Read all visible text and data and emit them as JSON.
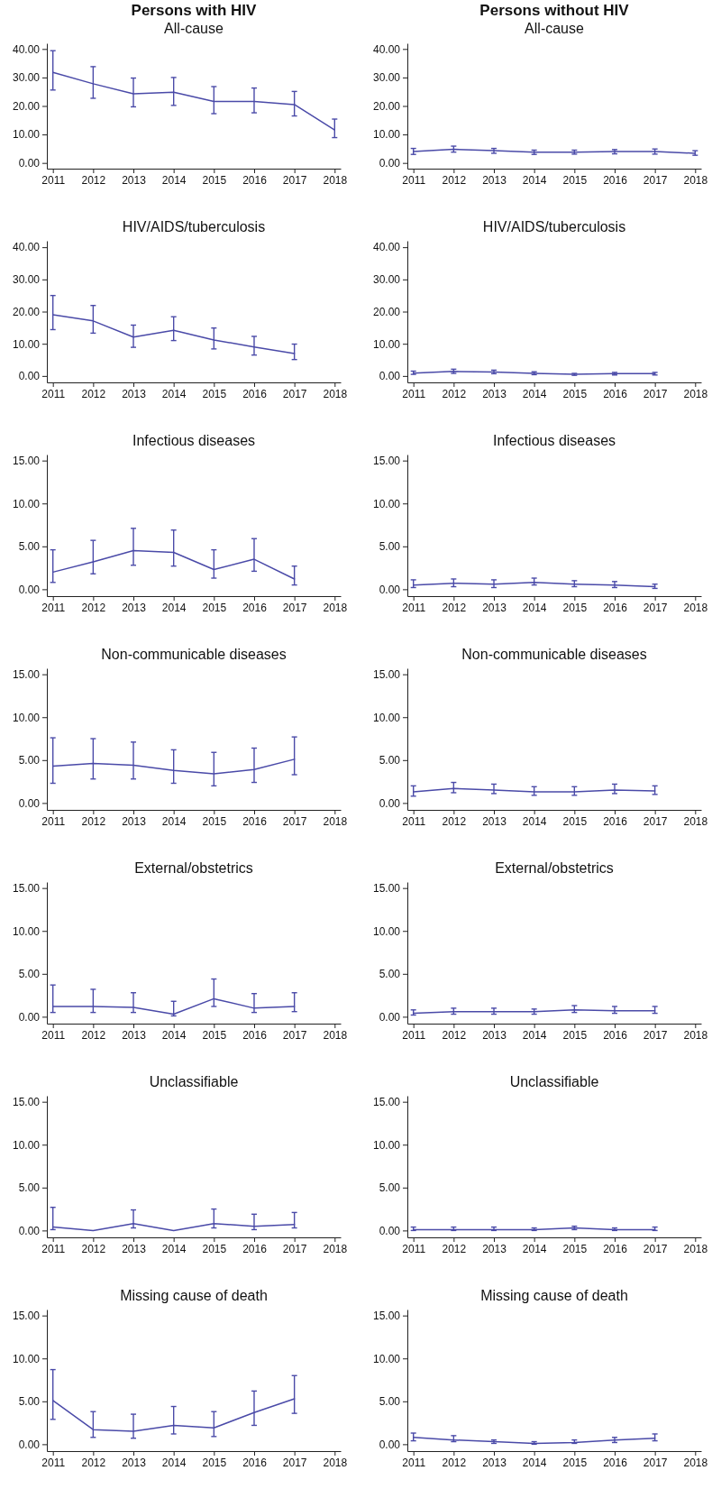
{
  "chart_data": [
    {
      "type": "line",
      "title": "Persons with HIV",
      "subtitle": "All-cause",
      "x": [
        2011,
        2012,
        2013,
        2014,
        2015,
        2016,
        2017,
        2018
      ],
      "values": [
        31.8,
        27.8,
        24.3,
        24.8,
        21.6,
        21.6,
        20.5,
        11.6
      ],
      "errors": [
        [
          25.6,
          39.4
        ],
        [
          22.7,
          33.8
        ],
        [
          19.7,
          29.8
        ],
        [
          20.2,
          30.0
        ],
        [
          17.3,
          26.8
        ],
        [
          17.6,
          26.3
        ],
        [
          16.5,
          25.1
        ],
        [
          8.9,
          15.4
        ]
      ],
      "color": "#4a4aa8",
      "xlim": [
        2010.85,
        2018.15
      ],
      "xticks": [
        2011,
        2012,
        2013,
        2014,
        2015,
        2016,
        2017,
        2018
      ],
      "ylim": [
        -2,
        42
      ],
      "yticks": [
        {
          "value": 0,
          "label": "0.00"
        },
        {
          "value": 10,
          "label": "10.00"
        },
        {
          "value": 20,
          "label": "20.00"
        },
        {
          "value": 30,
          "label": "30.00"
        },
        {
          "value": 40,
          "label": "40.00"
        }
      ]
    },
    {
      "type": "line",
      "title": "Persons without HIV",
      "subtitle": "All-cause",
      "x": [
        2011,
        2012,
        2013,
        2014,
        2015,
        2016,
        2017,
        2018
      ],
      "values": [
        4.0,
        4.8,
        4.3,
        3.8,
        3.8,
        4.0,
        4.0,
        3.4
      ],
      "errors": [
        [
          3.0,
          5.1
        ],
        [
          3.8,
          5.9
        ],
        [
          3.4,
          5.1
        ],
        [
          3.0,
          4.5
        ],
        [
          3.1,
          4.5
        ],
        [
          3.2,
          4.7
        ],
        [
          3.1,
          4.9
        ],
        [
          2.7,
          4.3
        ]
      ],
      "color": "#4a4aa8",
      "xlim": [
        2010.85,
        2018.15
      ],
      "xticks": [
        2011,
        2012,
        2013,
        2014,
        2015,
        2016,
        2017,
        2018
      ],
      "ylim": [
        -2,
        42
      ],
      "yticks": [
        {
          "value": 0,
          "label": "0.00"
        },
        {
          "value": 10,
          "label": "10.00"
        },
        {
          "value": 20,
          "label": "20.00"
        },
        {
          "value": 30,
          "label": "30.00"
        },
        {
          "value": 40,
          "label": "40.00"
        }
      ]
    },
    {
      "type": "line",
      "title": "HIV/AIDS/tuberculosis",
      "x": [
        2011,
        2012,
        2013,
        2014,
        2015,
        2016,
        2017
      ],
      "values": [
        19.0,
        17.1,
        12.1,
        14.2,
        11.2,
        9.0,
        7.0
      ],
      "errors": [
        [
          14.4,
          25.0
        ],
        [
          13.3,
          21.9
        ],
        [
          8.9,
          15.8
        ],
        [
          11.0,
          18.4
        ],
        [
          8.4,
          14.9
        ],
        [
          6.5,
          12.3
        ],
        [
          5.1,
          9.9
        ]
      ],
      "color": "#4a4aa8",
      "xlim": [
        2010.85,
        2018.15
      ],
      "xticks": [
        2011,
        2012,
        2013,
        2014,
        2015,
        2016,
        2017,
        2018
      ],
      "ylim": [
        -2,
        42
      ],
      "yticks": [
        {
          "value": 0,
          "label": "0.00"
        },
        {
          "value": 10,
          "label": "10.00"
        },
        {
          "value": 20,
          "label": "20.00"
        },
        {
          "value": 30,
          "label": "30.00"
        },
        {
          "value": 40,
          "label": "40.00"
        }
      ]
    },
    {
      "type": "line",
      "title": "HIV/AIDS/tuberculosis",
      "x": [
        2011,
        2012,
        2013,
        2014,
        2015,
        2016,
        2017
      ],
      "values": [
        0.9,
        1.4,
        1.2,
        0.8,
        0.5,
        0.7,
        0.7
      ],
      "errors": [
        [
          0.5,
          1.5
        ],
        [
          0.8,
          2.1
        ],
        [
          0.7,
          1.8
        ],
        [
          0.4,
          1.3
        ],
        [
          0.2,
          0.8
        ],
        [
          0.3,
          1.1
        ],
        [
          0.3,
          1.1
        ]
      ],
      "color": "#4a4aa8",
      "xlim": [
        2010.85,
        2018.15
      ],
      "xticks": [
        2011,
        2012,
        2013,
        2014,
        2015,
        2016,
        2017,
        2018
      ],
      "ylim": [
        -2,
        42
      ],
      "yticks": [
        {
          "value": 0,
          "label": "0.00"
        },
        {
          "value": 10,
          "label": "10.00"
        },
        {
          "value": 20,
          "label": "20.00"
        },
        {
          "value": 30,
          "label": "30.00"
        },
        {
          "value": 40,
          "label": "40.00"
        }
      ]
    },
    {
      "type": "line",
      "title": "Infectious diseases",
      "x": [
        2011,
        2012,
        2013,
        2014,
        2015,
        2016,
        2017
      ],
      "values": [
        2.0,
        3.2,
        4.5,
        4.3,
        2.3,
        3.5,
        1.2
      ],
      "errors": [
        [
          0.8,
          4.6
        ],
        [
          1.8,
          5.7
        ],
        [
          2.8,
          7.1
        ],
        [
          2.7,
          6.9
        ],
        [
          1.3,
          4.6
        ],
        [
          2.1,
          5.9
        ],
        [
          0.5,
          2.7
        ]
      ],
      "color": "#4a4aa8",
      "xlim": [
        2010.85,
        2018.15
      ],
      "xticks": [
        2011,
        2012,
        2013,
        2014,
        2015,
        2016,
        2017,
        2018
      ],
      "ylim": [
        -0.8,
        15.7
      ],
      "yticks": [
        {
          "value": 0,
          "label": "0.00"
        },
        {
          "value": 5,
          "label": "5.00"
        },
        {
          "value": 10,
          "label": "10.00"
        },
        {
          "value": 15,
          "label": "15.00"
        }
      ]
    },
    {
      "type": "line",
      "title": "Infectious diseases",
      "x": [
        2011,
        2012,
        2013,
        2014,
        2015,
        2016,
        2017
      ],
      "values": [
        0.5,
        0.7,
        0.6,
        0.8,
        0.6,
        0.5,
        0.3
      ],
      "errors": [
        [
          0.2,
          1.1
        ],
        [
          0.3,
          1.2
        ],
        [
          0.2,
          1.1
        ],
        [
          0.5,
          1.3
        ],
        [
          0.3,
          1.0
        ],
        [
          0.2,
          0.9
        ],
        [
          0.1,
          0.6
        ]
      ],
      "color": "#4a4aa8",
      "xlim": [
        2010.85,
        2018.15
      ],
      "xticks": [
        2011,
        2012,
        2013,
        2014,
        2015,
        2016,
        2017,
        2018
      ],
      "ylim": [
        -0.8,
        15.7
      ],
      "yticks": [
        {
          "value": 0,
          "label": "0.00"
        },
        {
          "value": 5,
          "label": "5.00"
        },
        {
          "value": 10,
          "label": "10.00"
        },
        {
          "value": 15,
          "label": "15.00"
        }
      ]
    },
    {
      "type": "line",
      "title": "Non-communicable diseases",
      "x": [
        2011,
        2012,
        2013,
        2014,
        2015,
        2016,
        2017
      ],
      "values": [
        4.3,
        4.6,
        4.4,
        3.8,
        3.4,
        3.9,
        5.1
      ],
      "errors": [
        [
          2.3,
          7.6
        ],
        [
          2.8,
          7.5
        ],
        [
          2.8,
          7.1
        ],
        [
          2.3,
          6.2
        ],
        [
          2.0,
          5.9
        ],
        [
          2.4,
          6.4
        ],
        [
          3.3,
          7.7
        ]
      ],
      "color": "#4a4aa8",
      "xlim": [
        2010.85,
        2018.15
      ],
      "xticks": [
        2011,
        2012,
        2013,
        2014,
        2015,
        2016,
        2017,
        2018
      ],
      "ylim": [
        -0.8,
        15.7
      ],
      "yticks": [
        {
          "value": 0,
          "label": "0.00"
        },
        {
          "value": 5,
          "label": "5.00"
        },
        {
          "value": 10,
          "label": "10.00"
        },
        {
          "value": 15,
          "label": "15.00"
        }
      ]
    },
    {
      "type": "line",
      "title": "Non-communicable diseases",
      "x": [
        2011,
        2012,
        2013,
        2014,
        2015,
        2016,
        2017
      ],
      "values": [
        1.3,
        1.7,
        1.5,
        1.3,
        1.3,
        1.5,
        1.4
      ],
      "errors": [
        [
          0.8,
          2.0
        ],
        [
          1.2,
          2.4
        ],
        [
          1.1,
          2.2
        ],
        [
          0.9,
          1.9
        ],
        [
          0.9,
          1.9
        ],
        [
          1.1,
          2.2
        ],
        [
          1.0,
          2.0
        ]
      ],
      "color": "#4a4aa8",
      "xlim": [
        2010.85,
        2018.15
      ],
      "xticks": [
        2011,
        2012,
        2013,
        2014,
        2015,
        2016,
        2017,
        2018
      ],
      "ylim": [
        -0.8,
        15.7
      ],
      "yticks": [
        {
          "value": 0,
          "label": "0.00"
        },
        {
          "value": 5,
          "label": "5.00"
        },
        {
          "value": 10,
          "label": "10.00"
        },
        {
          "value": 15,
          "label": "15.00"
        }
      ]
    },
    {
      "type": "line",
      "title": "External/obstetrics",
      "x": [
        2011,
        2012,
        2013,
        2014,
        2015,
        2016,
        2017
      ],
      "values": [
        1.2,
        1.2,
        1.1,
        0.3,
        2.1,
        1.0,
        1.2
      ],
      "errors": [
        [
          0.5,
          3.7
        ],
        [
          0.5,
          3.2
        ],
        [
          0.5,
          2.8
        ],
        [
          0.1,
          1.8
        ],
        [
          1.2,
          4.4
        ],
        [
          0.5,
          2.7
        ],
        [
          0.6,
          2.8
        ]
      ],
      "color": "#4a4aa8",
      "xlim": [
        2010.85,
        2018.15
      ],
      "xticks": [
        2011,
        2012,
        2013,
        2014,
        2015,
        2016,
        2017,
        2018
      ],
      "ylim": [
        -0.8,
        15.7
      ],
      "yticks": [
        {
          "value": 0,
          "label": "0.00"
        },
        {
          "value": 5,
          "label": "5.00"
        },
        {
          "value": 10,
          "label": "10.00"
        },
        {
          "value": 15,
          "label": "15.00"
        }
      ]
    },
    {
      "type": "line",
      "title": "External/obstetrics",
      "x": [
        2011,
        2012,
        2013,
        2014,
        2015,
        2016,
        2017
      ],
      "values": [
        0.4,
        0.6,
        0.6,
        0.6,
        0.8,
        0.7,
        0.7
      ],
      "errors": [
        [
          0.2,
          0.8
        ],
        [
          0.3,
          1.0
        ],
        [
          0.3,
          1.0
        ],
        [
          0.3,
          0.9
        ],
        [
          0.5,
          1.3
        ],
        [
          0.4,
          1.2
        ],
        [
          0.4,
          1.2
        ]
      ],
      "color": "#4a4aa8",
      "xlim": [
        2010.85,
        2018.15
      ],
      "xticks": [
        2011,
        2012,
        2013,
        2014,
        2015,
        2016,
        2017,
        2018
      ],
      "ylim": [
        -0.8,
        15.7
      ],
      "yticks": [
        {
          "value": 0,
          "label": "0.00"
        },
        {
          "value": 5,
          "label": "5.00"
        },
        {
          "value": 10,
          "label": "10.00"
        },
        {
          "value": 15,
          "label": "15.00"
        }
      ]
    },
    {
      "type": "line",
      "title": "Unclassifiable",
      "x": [
        2011,
        2012,
        2013,
        2014,
        2015,
        2016,
        2017
      ],
      "values": [
        0.4,
        0.0,
        0.8,
        0.0,
        0.8,
        0.5,
        0.7
      ],
      "errors": [
        [
          0.1,
          2.7
        ],
        null,
        [
          0.3,
          2.4
        ],
        null,
        [
          0.3,
          2.5
        ],
        [
          0.1,
          1.9
        ],
        [
          0.3,
          2.1
        ]
      ],
      "color": "#4a4aa8",
      "xlim": [
        2010.85,
        2018.15
      ],
      "xticks": [
        2011,
        2012,
        2013,
        2014,
        2015,
        2016,
        2017,
        2018
      ],
      "ylim": [
        -0.8,
        15.7
      ],
      "yticks": [
        {
          "value": 0,
          "label": "0.00"
        },
        {
          "value": 5,
          "label": "5.00"
        },
        {
          "value": 10,
          "label": "10.00"
        },
        {
          "value": 15,
          "label": "15.00"
        }
      ]
    },
    {
      "type": "line",
      "title": "Unclassifiable",
      "x": [
        2011,
        2012,
        2013,
        2014,
        2015,
        2016,
        2017
      ],
      "values": [
        0.1,
        0.1,
        0.1,
        0.1,
        0.3,
        0.1,
        0.1
      ],
      "errors": [
        [
          0.0,
          0.4
        ],
        [
          0.0,
          0.4
        ],
        [
          0.0,
          0.4
        ],
        [
          0.0,
          0.3
        ],
        [
          0.1,
          0.5
        ],
        [
          0.0,
          0.3
        ],
        [
          0.0,
          0.4
        ]
      ],
      "color": "#4a4aa8",
      "xlim": [
        2010.85,
        2018.15
      ],
      "xticks": [
        2011,
        2012,
        2013,
        2014,
        2015,
        2016,
        2017,
        2018
      ],
      "ylim": [
        -0.8,
        15.7
      ],
      "yticks": [
        {
          "value": 0,
          "label": "0.00"
        },
        {
          "value": 5,
          "label": "5.00"
        },
        {
          "value": 10,
          "label": "10.00"
        },
        {
          "value": 15,
          "label": "15.00"
        }
      ]
    },
    {
      "type": "line",
      "title": "Missing cause of death",
      "x": [
        2011,
        2012,
        2013,
        2014,
        2015,
        2016,
        2017
      ],
      "values": [
        5.1,
        1.7,
        1.5,
        2.2,
        1.9,
        3.7,
        5.3
      ],
      "errors": [
        [
          2.9,
          8.7
        ],
        [
          0.8,
          3.8
        ],
        [
          0.7,
          3.5
        ],
        [
          1.2,
          4.4
        ],
        [
          0.9,
          3.8
        ],
        [
          2.2,
          6.2
        ],
        [
          3.6,
          8.0
        ]
      ],
      "color": "#4a4aa8",
      "xlim": [
        2010.85,
        2018.15
      ],
      "xticks": [
        2011,
        2012,
        2013,
        2014,
        2015,
        2016,
        2017,
        2018
      ],
      "ylim": [
        -0.8,
        15.7
      ],
      "yticks": [
        {
          "value": 0,
          "label": "0.00"
        },
        {
          "value": 5,
          "label": "5.00"
        },
        {
          "value": 10,
          "label": "10.00"
        },
        {
          "value": 15,
          "label": "15.00"
        }
      ]
    },
    {
      "type": "line",
      "title": "Missing cause of death",
      "x": [
        2011,
        2012,
        2013,
        2014,
        2015,
        2016,
        2017
      ],
      "values": [
        0.8,
        0.5,
        0.3,
        0.1,
        0.2,
        0.5,
        0.7
      ],
      "errors": [
        [
          0.4,
          1.3
        ],
        [
          0.3,
          1.0
        ],
        [
          0.1,
          0.5
        ],
        [
          0.0,
          0.3
        ],
        [
          0.1,
          0.5
        ],
        [
          0.2,
          0.8
        ],
        [
          0.4,
          1.2
        ]
      ],
      "color": "#4a4aa8",
      "xlim": [
        2010.85,
        2018.15
      ],
      "xticks": [
        2011,
        2012,
        2013,
        2014,
        2015,
        2016,
        2017,
        2018
      ],
      "ylim": [
        -0.8,
        15.7
      ],
      "yticks": [
        {
          "value": 0,
          "label": "0.00"
        },
        {
          "value": 5,
          "label": "5.00"
        },
        {
          "value": 10,
          "label": "10.00"
        },
        {
          "value": 15,
          "label": "15.00"
        }
      ]
    }
  ]
}
